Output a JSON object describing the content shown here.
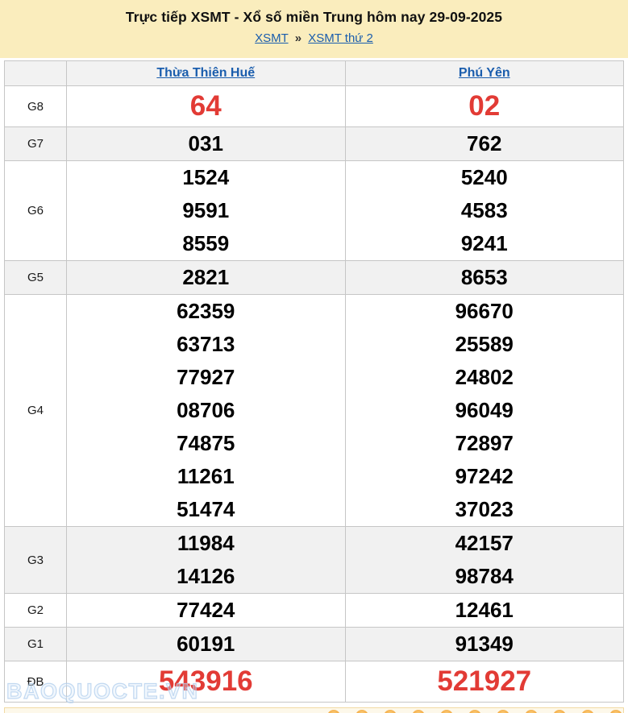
{
  "header": {
    "title": "Trực tiếp XSMT - Xổ số miền Trung hôm nay 29-09-2025",
    "breadcrumb": {
      "links": [
        "XSMT",
        "XSMT thứ 2"
      ],
      "separator": "»"
    }
  },
  "table": {
    "columns": [
      "Thừa Thiên Huế",
      "Phú Yên"
    ],
    "rows": [
      {
        "label": "G8",
        "red": true,
        "values": [
          [
            "64"
          ],
          [
            "02"
          ]
        ]
      },
      {
        "label": "G7",
        "red": false,
        "values": [
          [
            "031"
          ],
          [
            "762"
          ]
        ]
      },
      {
        "label": "G6",
        "red": false,
        "values": [
          [
            "1524",
            "9591",
            "8559"
          ],
          [
            "5240",
            "4583",
            "9241"
          ]
        ]
      },
      {
        "label": "G5",
        "red": false,
        "values": [
          [
            "2821"
          ],
          [
            "8653"
          ]
        ]
      },
      {
        "label": "G4",
        "red": false,
        "values": [
          [
            "62359",
            "63713",
            "77927",
            "08706",
            "74875",
            "11261",
            "51474"
          ],
          [
            "96670",
            "25589",
            "24802",
            "96049",
            "72897",
            "97242",
            "37023"
          ]
        ]
      },
      {
        "label": "G3",
        "red": false,
        "values": [
          [
            "11984",
            "14126"
          ],
          [
            "42157",
            "98784"
          ]
        ]
      },
      {
        "label": "G2",
        "red": false,
        "values": [
          [
            "77424"
          ],
          [
            "12461"
          ]
        ]
      },
      {
        "label": "G1",
        "red": false,
        "values": [
          [
            "60191"
          ],
          [
            "91349"
          ]
        ]
      },
      {
        "label": "ĐB",
        "red": true,
        "values": [
          [
            "543916"
          ],
          [
            "521927"
          ]
        ]
      }
    ]
  },
  "watermark": "BAOQUOCTE.VN",
  "footer": {
    "balls_count": 11
  },
  "colors": {
    "masthead_bg": "#FAEDBD",
    "link_blue": "#1A5DAD",
    "number_red": "#E23B35",
    "row_shade": "#F1F1F1",
    "table_border": "#C6C6C6",
    "ball_orange": "#F2A73F",
    "next_box_bg": "#FDF8EA"
  }
}
